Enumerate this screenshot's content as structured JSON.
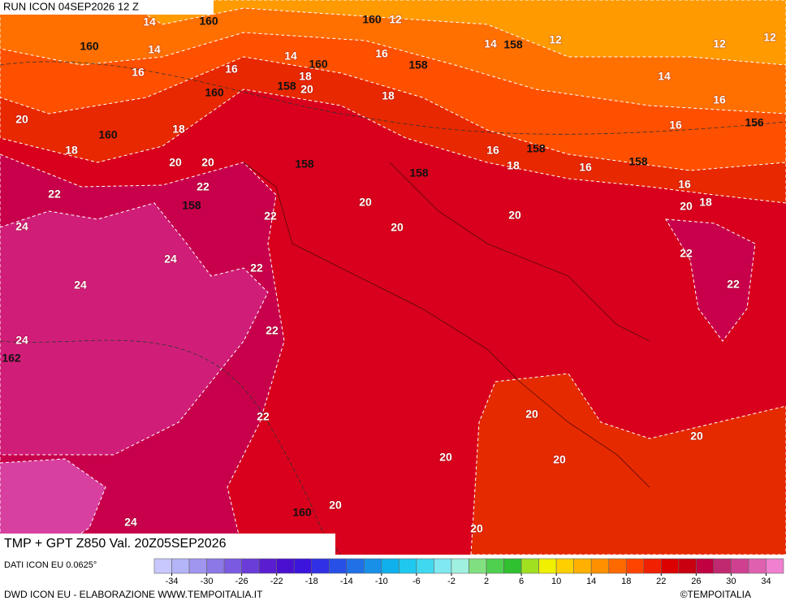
{
  "header": {
    "run": "RUN ICON 04SEP2026 12 Z",
    "title": "TMP + GPT Z850 Val. 20Z05SEP2026",
    "source": "DATI ICON EU 0.0625°",
    "credit": "DWD ICON EU - ELABORAZIONE WWW.TEMPOITALIA.IT",
    "copyright": "©TEMPOITALIA"
  },
  "colorbar": {
    "range": [
      -36,
      36
    ],
    "colors": [
      "#c8c8ff",
      "#b4b4f8",
      "#a096f0",
      "#8c78e6",
      "#7a5ae0",
      "#6a3cd8",
      "#5a1ed0",
      "#4a10d0",
      "#3c14dc",
      "#3030e6",
      "#2850e6",
      "#2070e6",
      "#1890e8",
      "#10b0ec",
      "#20c8f0",
      "#40d8f0",
      "#80e8f0",
      "#a0f0e0",
      "#80e080",
      "#50d050",
      "#30c030",
      "#a0e020",
      "#f0f000",
      "#ffd000",
      "#ffb000",
      "#ff9000",
      "#ff6a00",
      "#ff4400",
      "#f02000",
      "#dd0000",
      "#c80010",
      "#c00040",
      "#c02870",
      "#d04090",
      "#e060b0",
      "#f080d0"
    ],
    "ticks": [
      -34,
      -30,
      -26,
      -22,
      -18,
      -14,
      -10,
      -6,
      -2,
      2,
      6,
      10,
      14,
      18,
      22,
      26,
      30,
      34
    ]
  },
  "map": {
    "geopotential_labels": [
      160,
      160,
      160,
      158,
      160,
      158,
      160,
      158,
      160,
      158,
      158,
      158,
      158,
      158,
      156,
      162,
      160
    ],
    "temperature_labels": [
      12,
      14,
      14,
      14,
      16,
      16,
      16,
      18,
      20,
      14,
      12,
      12,
      12,
      14,
      16,
      16,
      18,
      20,
      18,
      18,
      20,
      20,
      22,
      22,
      24,
      24,
      24,
      24,
      22,
      22,
      22,
      22,
      20,
      20,
      20,
      16,
      18,
      16,
      16,
      20,
      18,
      22,
      22,
      20,
      20,
      20,
      20,
      20,
      20,
      24
    ]
  }
}
